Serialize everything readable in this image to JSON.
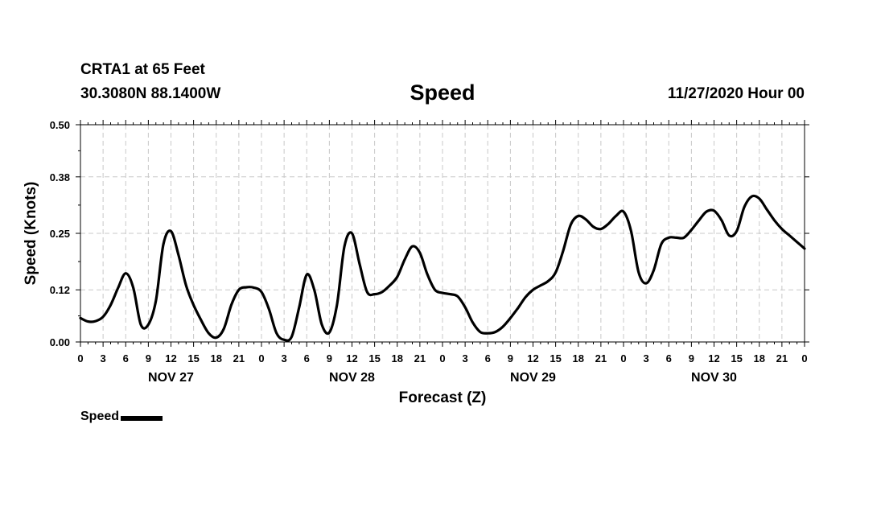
{
  "header": {
    "station": "CRTA1 at 65 Feet",
    "coords": "30.3080N 88.1400W",
    "title": "Speed",
    "runtime": "11/27/2020 Hour 00"
  },
  "chart_data": {
    "type": "line",
    "title": "Speed",
    "xlabel": "Forecast (Z)",
    "ylabel": "Speed (Knots)",
    "ylim": [
      0,
      0.5
    ],
    "yticks": [
      "0.00",
      "0.12",
      "0.25",
      "0.38",
      "0.50"
    ],
    "xlim": [
      0,
      96
    ],
    "xtick_hours": [
      0,
      3,
      6,
      9,
      12,
      15,
      18,
      21,
      24,
      27,
      30,
      33,
      36,
      39,
      42,
      45,
      48,
      51,
      54,
      57,
      60,
      63,
      66,
      69,
      72,
      75,
      78,
      81,
      84,
      87,
      90,
      93,
      96
    ],
    "xtick_labels": [
      "0",
      "3",
      "6",
      "9",
      "12",
      "15",
      "18",
      "21",
      "0",
      "3",
      "6",
      "9",
      "12",
      "15",
      "18",
      "21",
      "0",
      "3",
      "6",
      "9",
      "12",
      "15",
      "18",
      "21",
      "0",
      "3",
      "6",
      "9",
      "12",
      "15",
      "18",
      "21",
      "0"
    ],
    "days": [
      {
        "label": "NOV 27",
        "hour": 12
      },
      {
        "label": "NOV 28",
        "hour": 36
      },
      {
        "label": "NOV 29",
        "hour": 60
      },
      {
        "label": "NOV 30",
        "hour": 84
      }
    ],
    "grid": true,
    "line_color": "#000000",
    "series": [
      {
        "name": "Speed",
        "x": [
          0,
          1,
          2,
          3,
          4,
          5,
          6,
          7,
          8,
          9,
          10,
          11,
          12,
          13,
          14,
          15,
          16,
          17,
          18,
          19,
          20,
          21,
          22,
          23,
          24,
          25,
          26,
          27,
          28,
          29,
          30,
          31,
          32,
          33,
          34,
          35,
          36,
          37,
          38,
          39,
          40,
          41,
          42,
          43,
          44,
          45,
          46,
          47,
          48,
          49,
          50,
          51,
          52,
          53,
          54,
          55,
          56,
          57,
          58,
          59,
          60,
          61,
          62,
          63,
          64,
          65,
          66,
          67,
          68,
          69,
          70,
          71,
          72,
          73,
          74,
          75,
          76,
          77,
          78,
          79,
          80,
          81,
          82,
          83,
          84,
          85,
          86,
          87,
          88,
          89,
          90,
          91,
          92,
          93,
          94,
          95,
          96
        ],
        "values": [
          0.055,
          0.047,
          0.048,
          0.058,
          0.085,
          0.125,
          0.158,
          0.125,
          0.04,
          0.04,
          0.095,
          0.225,
          0.255,
          0.2,
          0.13,
          0.085,
          0.05,
          0.02,
          0.01,
          0.03,
          0.085,
          0.12,
          0.126,
          0.125,
          0.115,
          0.075,
          0.02,
          0.005,
          0.012,
          0.08,
          0.155,
          0.12,
          0.04,
          0.022,
          0.085,
          0.22,
          0.25,
          0.18,
          0.115,
          0.11,
          0.115,
          0.13,
          0.15,
          0.19,
          0.22,
          0.205,
          0.155,
          0.12,
          0.113,
          0.11,
          0.105,
          0.08,
          0.045,
          0.023,
          0.02,
          0.023,
          0.035,
          0.055,
          0.078,
          0.103,
          0.12,
          0.13,
          0.14,
          0.16,
          0.21,
          0.27,
          0.29,
          0.282,
          0.265,
          0.26,
          0.272,
          0.29,
          0.3,
          0.255,
          0.16,
          0.135,
          0.165,
          0.225,
          0.24,
          0.24,
          0.24,
          0.258,
          0.28,
          0.3,
          0.302,
          0.28,
          0.245,
          0.255,
          0.31,
          0.335,
          0.33,
          0.305,
          0.28,
          0.26,
          0.245,
          0.23,
          0.215
        ]
      }
    ],
    "legend": "bottom-left"
  }
}
